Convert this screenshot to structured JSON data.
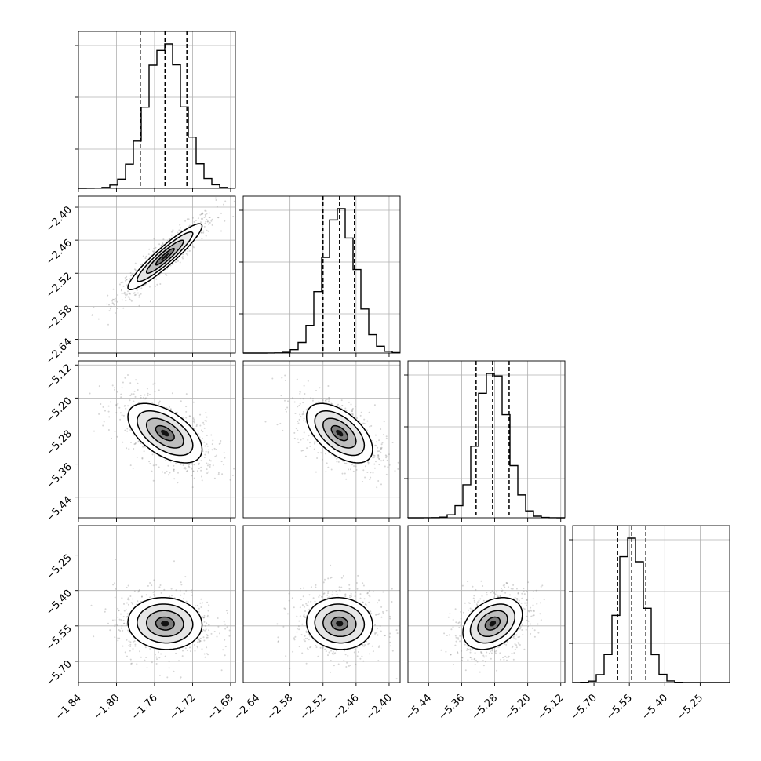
{
  "chart_data": {
    "type": "corner",
    "title": "",
    "grid": true,
    "parameters": [
      {
        "ticks": [
          -1.84,
          -1.8,
          -1.76,
          -1.72,
          -1.68
        ],
        "tick_labels": [
          "−1.84",
          "−1.80",
          "−1.76",
          "−1.72",
          "−1.68"
        ],
        "range": [
          -1.84,
          -1.675
        ],
        "mean": -1.749,
        "sd": 0.0195,
        "quantiles": [
          -1.775,
          -1.749,
          -1.726
        ]
      },
      {
        "ticks": [
          -2.64,
          -2.58,
          -2.52,
          -2.46,
          -2.4
        ],
        "tick_labels": [
          "−2.64",
          "−2.58",
          "−2.52",
          "−2.46",
          "−2.40"
        ],
        "range": [
          -2.665,
          -2.38
        ],
        "mean": -2.49,
        "sd": 0.03,
        "quantiles": [
          -2.52,
          -2.49,
          -2.463
        ]
      },
      {
        "ticks": [
          -5.44,
          -5.36,
          -5.28,
          -5.2,
          -5.12
        ],
        "tick_labels": [
          "−5.44",
          "−5.36",
          "−5.28",
          "−5.20",
          "−5.12"
        ],
        "range": [
          -5.49,
          -5.11
        ],
        "mean": -5.285,
        "sd": 0.036,
        "quantiles": [
          -5.325,
          -5.285,
          -5.245
        ]
      },
      {
        "ticks": [
          -5.7,
          -5.55,
          -5.4,
          -5.25
        ],
        "tick_labels": [
          "−5.70",
          "−5.55",
          "−5.40",
          "−5.25"
        ],
        "range": [
          -5.79,
          -5.125
        ],
        "mean": -5.54,
        "sd": 0.055,
        "quantiles": [
          -5.6,
          -5.54,
          -5.48
        ]
      }
    ],
    "hist_axis_ticks": [
      0.25,
      0.58,
      0.91
    ],
    "correlations": [
      [
        1,
        0.93,
        -0.55,
        -0.05
      ],
      [
        0.93,
        1,
        -0.55,
        -0.05
      ],
      [
        -0.55,
        -0.55,
        1,
        0.35
      ],
      [
        -0.05,
        -0.05,
        0.35,
        1
      ]
    ],
    "contour_levels_sigma": [
      0.5,
      1,
      1.5,
      2
    ]
  }
}
